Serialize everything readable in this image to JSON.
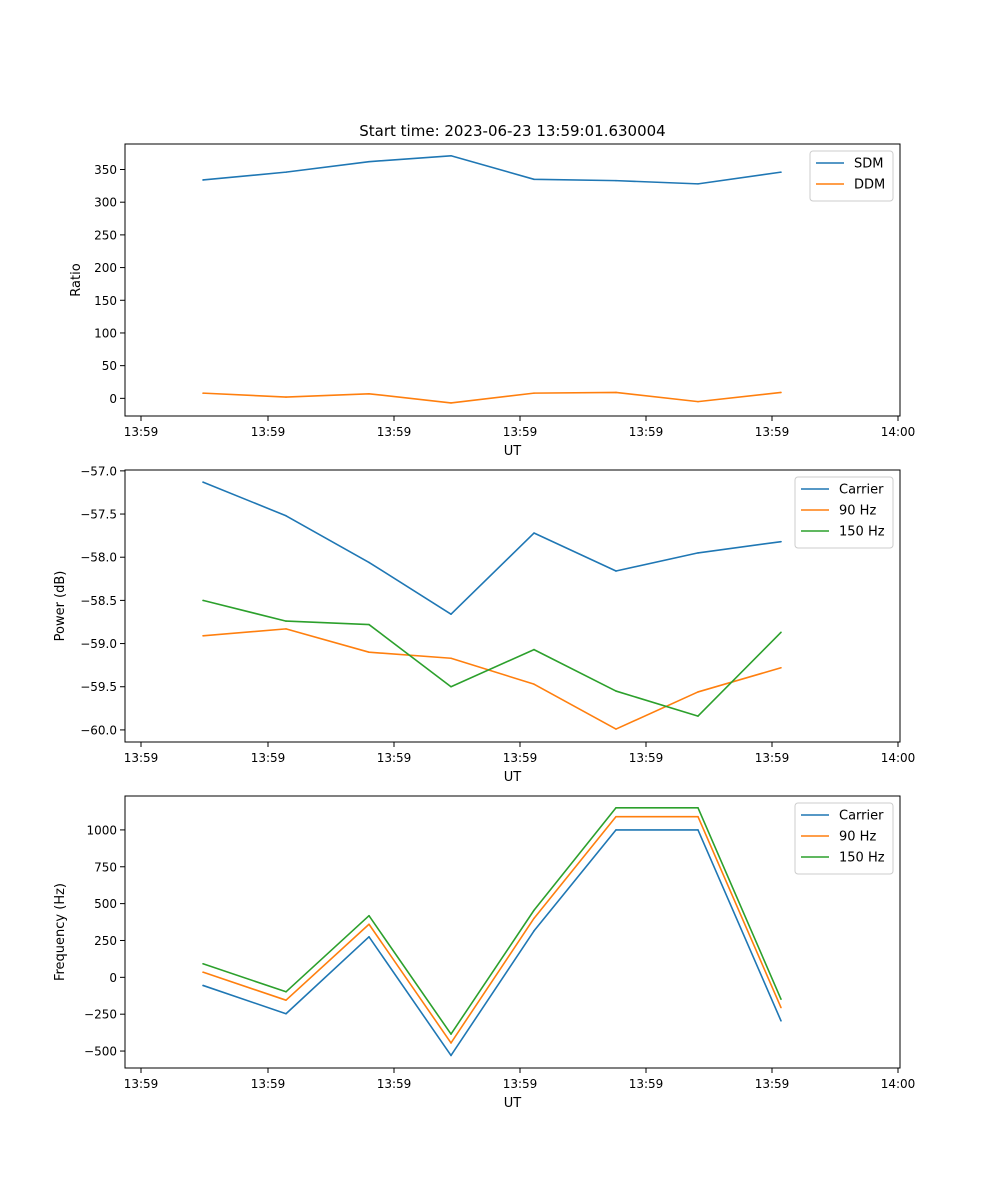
{
  "figure": {
    "title": "Start time: 2023-06-23 13:59:01.630004"
  },
  "chart_data": [
    {
      "type": "line",
      "xlabel": "UT",
      "ylabel": "Ratio",
      "x_tick_labels": [
        "13:59",
        "13:59",
        "13:59",
        "13:59",
        "13:59",
        "13:59",
        "14:00"
      ],
      "yticks": [
        0,
        50,
        100,
        150,
        200,
        250,
        300,
        350
      ],
      "ylim": [
        -27,
        389
      ],
      "legend": "upper-right",
      "grid": false,
      "series": [
        {
          "name": "SDM",
          "color": "#1f77b4",
          "values": [
            334,
            346,
            362,
            371,
            335,
            333,
            328,
            346
          ]
        },
        {
          "name": "DDM",
          "color": "#ff7f0e",
          "values": [
            8,
            2,
            7,
            -7,
            8,
            9,
            -5,
            9
          ]
        }
      ]
    },
    {
      "type": "line",
      "xlabel": "UT",
      "ylabel": "Power (dB)",
      "x_tick_labels": [
        "13:59",
        "13:59",
        "13:59",
        "13:59",
        "13:59",
        "13:59",
        "14:00"
      ],
      "yticks": [
        -60.0,
        -59.5,
        -59.0,
        -58.5,
        -58.0,
        -57.5,
        -57.0
      ],
      "ytick_labels": [
        "−60.0",
        "−59.5",
        "−59.0",
        "−58.5",
        "−58.0",
        "−57.5",
        "−57.0"
      ],
      "ylim": [
        -60.14,
        -56.99
      ],
      "legend": "upper-right",
      "grid": false,
      "series": [
        {
          "name": "Carrier",
          "color": "#1f77b4",
          "values": [
            -57.13,
            -57.52,
            -58.06,
            -58.66,
            -57.72,
            -58.16,
            -57.95,
            -57.82
          ]
        },
        {
          "name": "90 Hz",
          "color": "#ff7f0e",
          "values": [
            -58.91,
            -58.83,
            -59.1,
            -59.17,
            -59.47,
            -59.99,
            -59.56,
            -59.28
          ]
        },
        {
          "name": "150 Hz",
          "color": "#2ca02c",
          "values": [
            -58.5,
            -58.74,
            -58.78,
            -59.5,
            -59.07,
            -59.55,
            -59.84,
            -58.87
          ]
        }
      ]
    },
    {
      "type": "line",
      "xlabel": "UT",
      "ylabel": "Frequency (Hz)",
      "x_tick_labels": [
        "13:59",
        "13:59",
        "13:59",
        "13:59",
        "13:59",
        "13:59",
        "14:00"
      ],
      "yticks": [
        -500,
        -250,
        0,
        250,
        500,
        750,
        1000
      ],
      "ytick_labels": [
        "−500",
        "−250",
        "0",
        "250",
        "500",
        "750",
        "1000"
      ],
      "ylim": [
        -615,
        1230
      ],
      "legend": "upper-right",
      "grid": false,
      "series": [
        {
          "name": "Carrier",
          "color": "#1f77b4",
          "values": [
            -55,
            -247,
            275,
            -530,
            315,
            1000,
            1000,
            -295
          ]
        },
        {
          "name": "90 Hz",
          "color": "#ff7f0e",
          "values": [
            35,
            -155,
            360,
            -445,
            400,
            1090,
            1090,
            -205
          ]
        },
        {
          "name": "150 Hz",
          "color": "#2ca02c",
          "values": [
            92,
            -98,
            418,
            -385,
            455,
            1150,
            1150,
            -148
          ]
        }
      ]
    }
  ]
}
